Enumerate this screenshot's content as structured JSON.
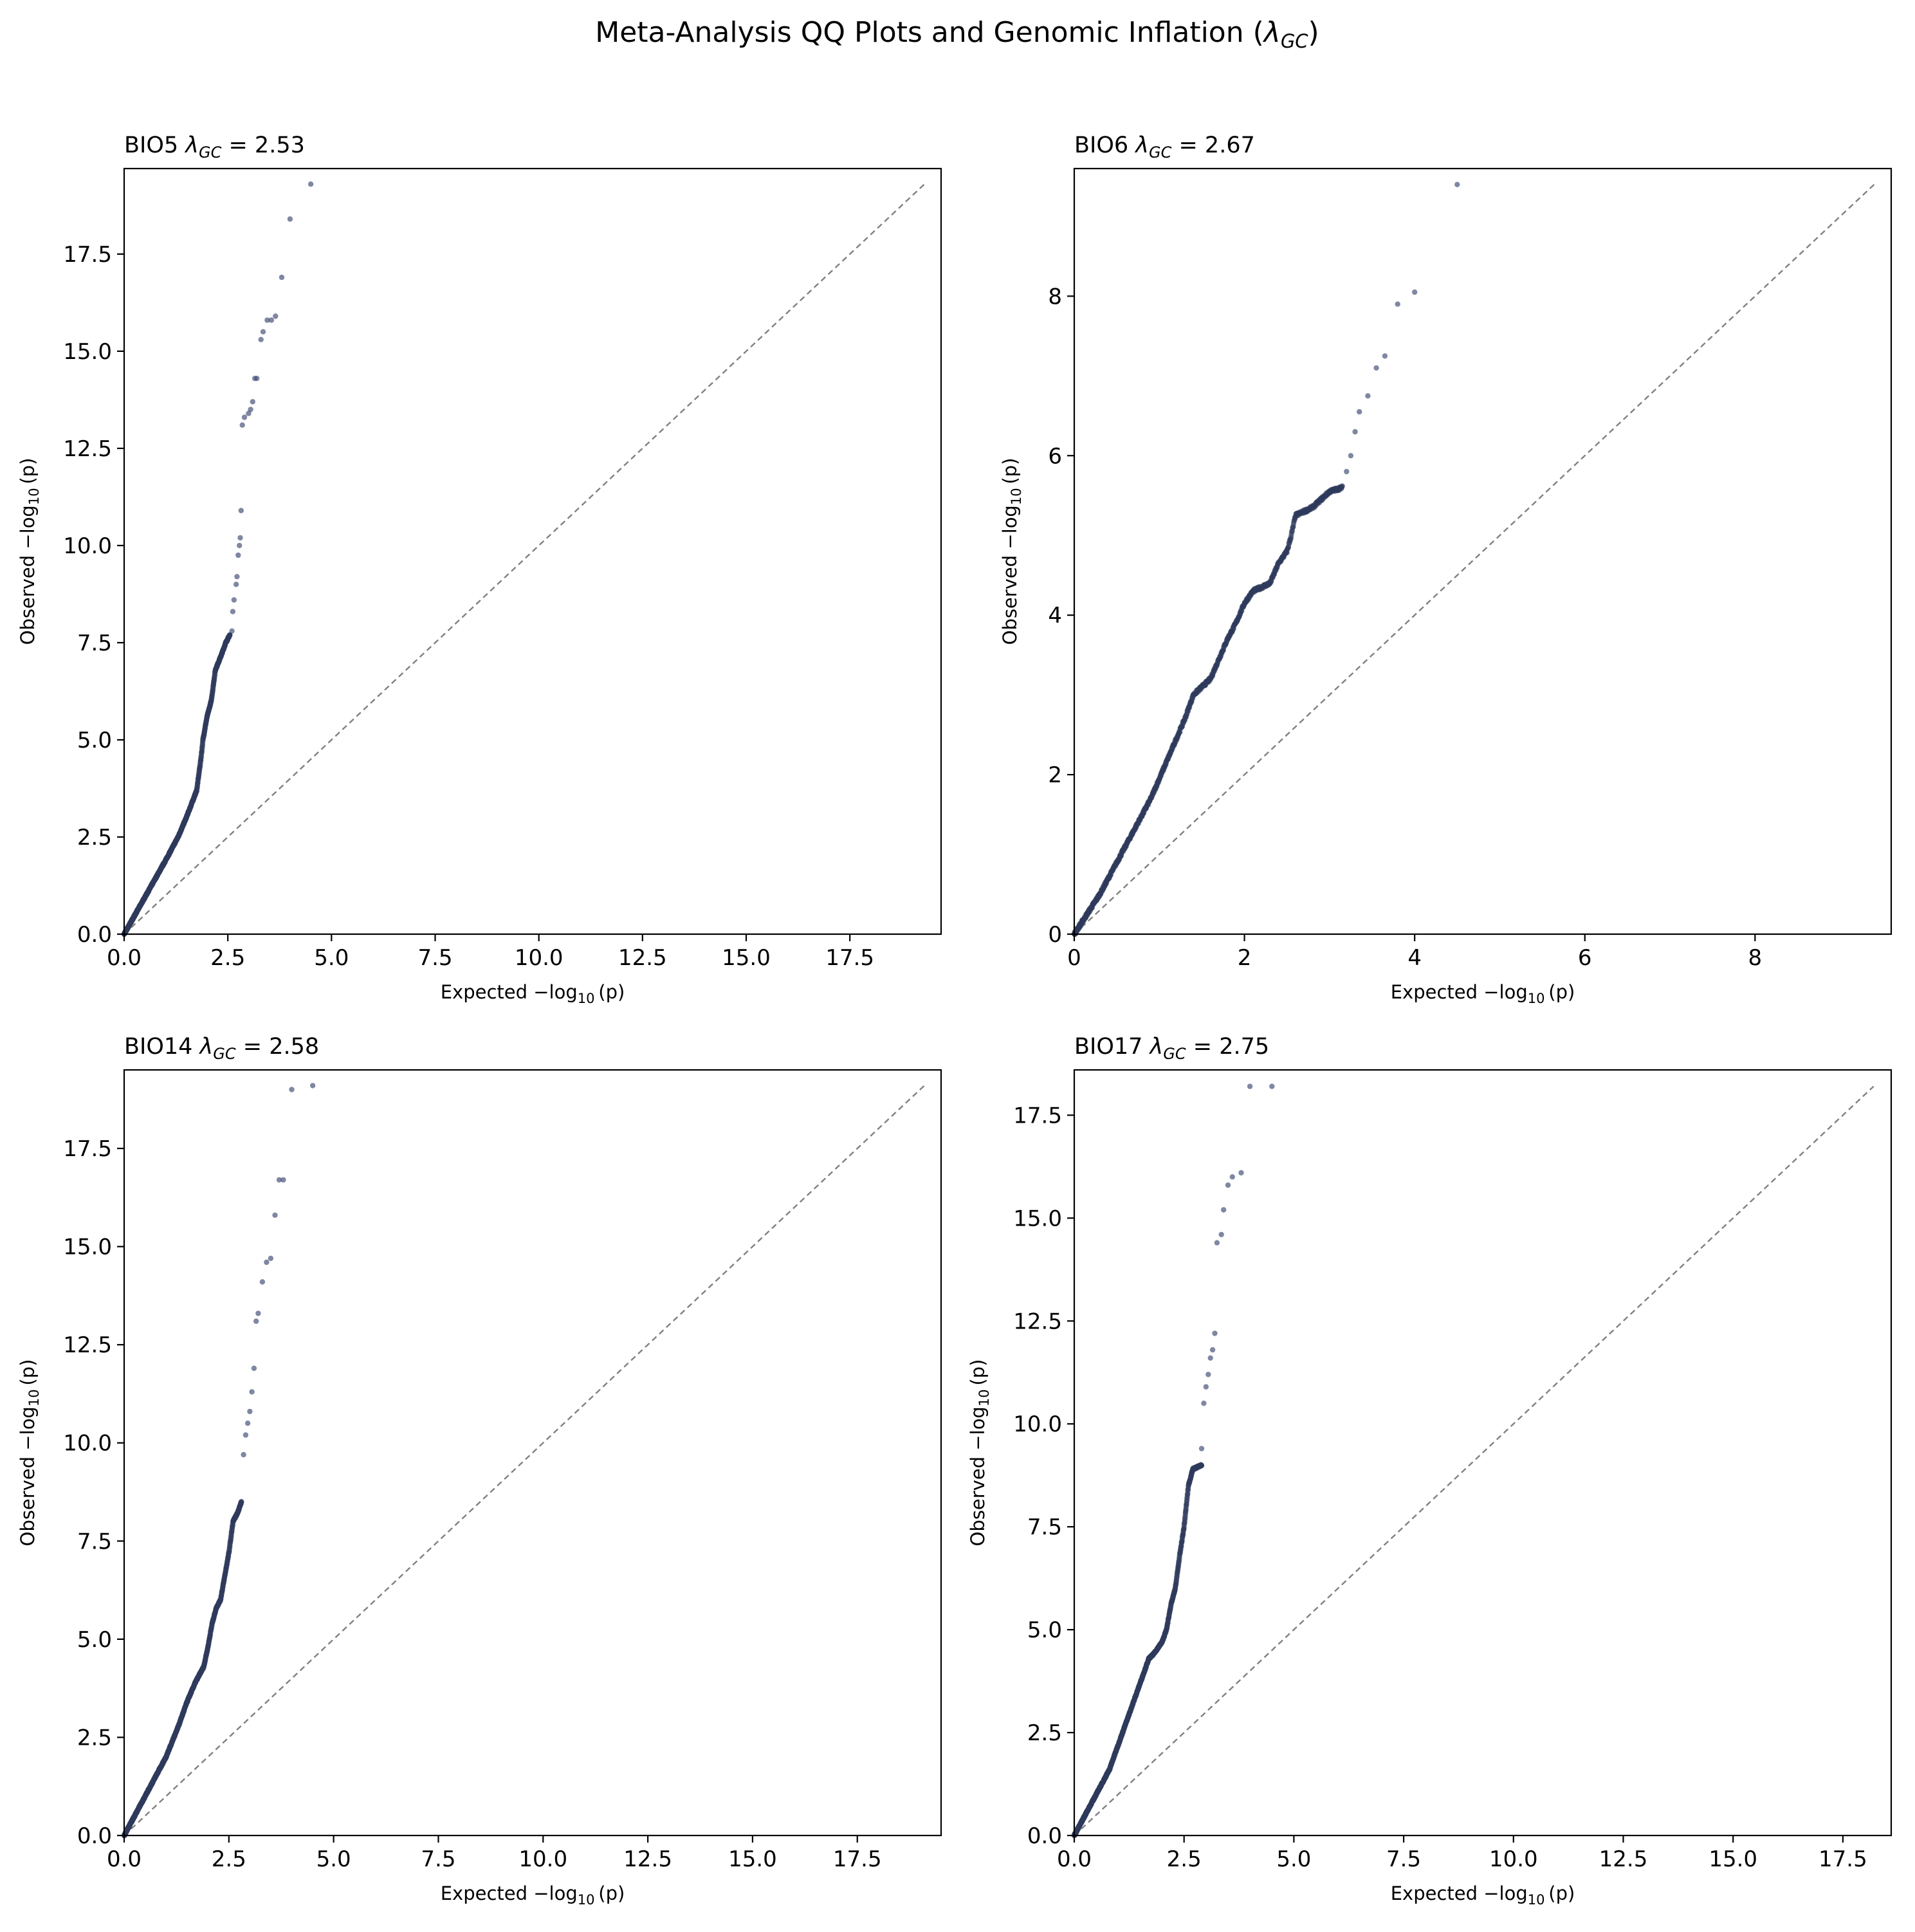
{
  "figure": {
    "suptitle_prefix": "Meta-Analysis QQ Plots and Genomic Inflation (",
    "suptitle_symbol": "λ",
    "suptitle_subscript": "GC",
    "suptitle_suffix": ")"
  },
  "chart_data": [
    {
      "type": "scatter",
      "trait": "BIO5",
      "lambda_symbol": "λ",
      "lambda_subscript": "GC",
      "lambda_text": " = 2.53",
      "lambda_gc": 2.53,
      "xlabel_prefix": "Expected −log",
      "xlabel_subscript": "10",
      "xlabel_suffix": "(p)",
      "ylabel_prefix": "Observed −log",
      "ylabel_subscript": "10",
      "ylabel_suffix": "(p)",
      "xlim": [
        0,
        19.7
      ],
      "ylim": [
        0,
        19.7
      ],
      "xticks": [
        0,
        2.5,
        5,
        7.5,
        10,
        12.5,
        15,
        17.5
      ],
      "xtick_labels": [
        "0.0",
        "2.5",
        "5.0",
        "7.5",
        "10.0",
        "12.5",
        "15.0",
        "17.5"
      ],
      "yticks": [
        0,
        2.5,
        5,
        7.5,
        10,
        12.5,
        15,
        17.5
      ],
      "ytick_labels": [
        "0.0",
        "2.5",
        "5.0",
        "7.5",
        "10.0",
        "12.5",
        "15.0",
        "17.5"
      ],
      "reference_line": [
        0,
        19.3
      ],
      "curve": [
        [
          0,
          0
        ],
        [
          0.5,
          0.95
        ],
        [
          1.0,
          1.9
        ],
        [
          1.3,
          2.5
        ],
        [
          1.5,
          3.0
        ],
        [
          1.75,
          3.7
        ],
        [
          1.85,
          4.5
        ],
        [
          1.9,
          5.0
        ],
        [
          2.0,
          5.6
        ],
        [
          2.1,
          6.0
        ],
        [
          2.2,
          6.8
        ],
        [
          2.35,
          7.2
        ],
        [
          2.45,
          7.5
        ],
        [
          2.55,
          7.7
        ]
      ],
      "tail": [
        [
          2.6,
          7.8
        ],
        [
          2.62,
          8.3
        ],
        [
          2.65,
          8.6
        ],
        [
          2.7,
          9.0
        ],
        [
          2.72,
          9.2
        ],
        [
          2.75,
          9.75
        ],
        [
          2.78,
          10.0
        ],
        [
          2.8,
          10.2
        ],
        [
          2.82,
          10.9
        ],
        [
          2.85,
          13.1
        ],
        [
          2.9,
          13.3
        ],
        [
          3.0,
          13.4
        ],
        [
          3.05,
          13.5
        ],
        [
          3.1,
          13.7
        ],
        [
          3.15,
          14.3
        ],
        [
          3.2,
          14.3
        ],
        [
          3.3,
          15.3
        ],
        [
          3.35,
          15.5
        ],
        [
          3.45,
          15.8
        ],
        [
          3.55,
          15.8
        ],
        [
          3.65,
          15.9
        ],
        [
          3.8,
          16.9
        ],
        [
          4.0,
          18.4
        ],
        [
          4.5,
          19.3
        ]
      ]
    },
    {
      "type": "scatter",
      "trait": "BIO6",
      "lambda_symbol": "λ",
      "lambda_subscript": "GC",
      "lambda_text": " = 2.67",
      "lambda_gc": 2.67,
      "xlabel_prefix": "Expected −log",
      "xlabel_subscript": "10",
      "xlabel_suffix": "(p)",
      "ylabel_prefix": "Observed −log",
      "ylabel_subscript": "10",
      "ylabel_suffix": "(p)",
      "xlim": [
        0,
        9.6
      ],
      "ylim": [
        0,
        9.6
      ],
      "xticks": [
        0,
        2,
        4,
        6,
        8
      ],
      "xtick_labels": [
        "0",
        "2",
        "4",
        "6",
        "8"
      ],
      "yticks": [
        0,
        2,
        4,
        6,
        8
      ],
      "ytick_labels": [
        "0",
        "2",
        "4",
        "6",
        "8"
      ],
      "reference_line": [
        0,
        9.4
      ],
      "curve": [
        [
          0,
          0
        ],
        [
          0.3,
          0.5
        ],
        [
          0.5,
          0.9
        ],
        [
          0.7,
          1.3
        ],
        [
          0.9,
          1.7
        ],
        [
          1.1,
          2.2
        ],
        [
          1.3,
          2.7
        ],
        [
          1.4,
          3.0
        ],
        [
          1.5,
          3.1
        ],
        [
          1.6,
          3.2
        ],
        [
          1.7,
          3.45
        ],
        [
          1.8,
          3.7
        ],
        [
          1.9,
          3.9
        ],
        [
          2.0,
          4.15
        ],
        [
          2.1,
          4.3
        ],
        [
          2.3,
          4.4
        ],
        [
          2.4,
          4.65
        ],
        [
          2.5,
          4.8
        ],
        [
          2.55,
          5.0
        ],
        [
          2.6,
          5.25
        ],
        [
          2.7,
          5.3
        ],
        [
          2.8,
          5.35
        ],
        [
          2.9,
          5.45
        ],
        [
          3.0,
          5.55
        ],
        [
          3.15,
          5.6
        ]
      ],
      "tail": [
        [
          3.2,
          5.8
        ],
        [
          3.25,
          6.0
        ],
        [
          3.3,
          6.3
        ],
        [
          3.35,
          6.55
        ],
        [
          3.45,
          6.75
        ],
        [
          3.55,
          7.1
        ],
        [
          3.65,
          7.25
        ],
        [
          3.8,
          7.9
        ],
        [
          4.0,
          8.05
        ],
        [
          4.5,
          9.4
        ]
      ]
    },
    {
      "type": "scatter",
      "trait": "BIO14",
      "lambda_symbol": "λ",
      "lambda_subscript": "GC",
      "lambda_text": " = 2.58",
      "lambda_gc": 2.58,
      "xlabel_prefix": "Expected −log",
      "xlabel_subscript": "10",
      "xlabel_suffix": "(p)",
      "ylabel_prefix": "Observed −log",
      "ylabel_subscript": "10",
      "ylabel_suffix": "(p)",
      "xlim": [
        0,
        19.5
      ],
      "ylim": [
        0,
        19.5
      ],
      "xticks": [
        0,
        2.5,
        5,
        7.5,
        10,
        12.5,
        15,
        17.5
      ],
      "xtick_labels": [
        "0.0",
        "2.5",
        "5.0",
        "7.5",
        "10.0",
        "12.5",
        "15.0",
        "17.5"
      ],
      "yticks": [
        0,
        2.5,
        5,
        7.5,
        10,
        12.5,
        15,
        17.5
      ],
      "ytick_labels": [
        "0.0",
        "2.5",
        "5.0",
        "7.5",
        "10.0",
        "12.5",
        "15.0",
        "17.5"
      ],
      "reference_line": [
        0,
        19.1
      ],
      "curve": [
        [
          0,
          0
        ],
        [
          0.5,
          1.0
        ],
        [
          1.0,
          2.0
        ],
        [
          1.3,
          2.8
        ],
        [
          1.5,
          3.4
        ],
        [
          1.7,
          3.9
        ],
        [
          1.9,
          4.3
        ],
        [
          2.0,
          4.8
        ],
        [
          2.1,
          5.4
        ],
        [
          2.2,
          5.8
        ],
        [
          2.3,
          6.0
        ],
        [
          2.4,
          6.6
        ],
        [
          2.5,
          7.2
        ],
        [
          2.6,
          8.0
        ],
        [
          2.7,
          8.2
        ],
        [
          2.8,
          8.5
        ]
      ],
      "tail": [
        [
          2.85,
          9.7
        ],
        [
          2.9,
          10.2
        ],
        [
          2.95,
          10.5
        ],
        [
          3.0,
          10.8
        ],
        [
          3.05,
          11.3
        ],
        [
          3.1,
          11.9
        ],
        [
          3.15,
          13.1
        ],
        [
          3.2,
          13.3
        ],
        [
          3.3,
          14.1
        ],
        [
          3.4,
          14.6
        ],
        [
          3.5,
          14.7
        ],
        [
          3.6,
          15.8
        ],
        [
          3.7,
          16.7
        ],
        [
          3.8,
          16.7
        ],
        [
          4.0,
          19.0
        ],
        [
          4.5,
          19.1
        ]
      ]
    },
    {
      "type": "scatter",
      "trait": "BIO17",
      "lambda_symbol": "λ",
      "lambda_subscript": "GC",
      "lambda_text": " = 2.75",
      "lambda_gc": 2.75,
      "xlabel_prefix": "Expected −log",
      "xlabel_subscript": "10",
      "xlabel_suffix": "(p)",
      "ylabel_prefix": "Observed −log",
      "ylabel_subscript": "10",
      "ylabel_suffix": "(p)",
      "xlim": [
        0,
        18.6
      ],
      "ylim": [
        0,
        18.6
      ],
      "xticks": [
        0,
        2.5,
        5,
        7.5,
        10,
        12.5,
        15,
        17.5
      ],
      "xtick_labels": [
        "0.0",
        "2.5",
        "5.0",
        "7.5",
        "10.0",
        "12.5",
        "15.0",
        "17.5"
      ],
      "yticks": [
        0,
        2.5,
        5,
        7.5,
        10,
        12.5,
        15,
        17.5
      ],
      "ytick_labels": [
        "0.0",
        "2.5",
        "5.0",
        "7.5",
        "10.0",
        "12.5",
        "15.0",
        "17.5"
      ],
      "reference_line": [
        0,
        18.2
      ],
      "curve": [
        [
          0,
          0
        ],
        [
          0.5,
          1.0
        ],
        [
          0.8,
          1.6
        ],
        [
          1.0,
          2.2
        ],
        [
          1.2,
          2.8
        ],
        [
          1.4,
          3.4
        ],
        [
          1.6,
          4.0
        ],
        [
          1.7,
          4.3
        ],
        [
          1.8,
          4.4
        ],
        [
          2.0,
          4.7
        ],
        [
          2.1,
          5.0
        ],
        [
          2.2,
          5.6
        ],
        [
          2.3,
          6.0
        ],
        [
          2.4,
          6.8
        ],
        [
          2.5,
          7.5
        ],
        [
          2.6,
          8.5
        ],
        [
          2.7,
          8.9
        ],
        [
          2.9,
          9.0
        ]
      ],
      "tail": [
        [
          2.9,
          9.4
        ],
        [
          2.95,
          10.5
        ],
        [
          3.0,
          10.9
        ],
        [
          3.05,
          11.2
        ],
        [
          3.1,
          11.6
        ],
        [
          3.15,
          11.8
        ],
        [
          3.2,
          12.2
        ],
        [
          3.25,
          14.4
        ],
        [
          3.35,
          14.6
        ],
        [
          3.4,
          15.2
        ],
        [
          3.5,
          15.8
        ],
        [
          3.6,
          16.0
        ],
        [
          3.8,
          16.1
        ],
        [
          4.0,
          18.2
        ],
        [
          4.5,
          18.2
        ]
      ]
    }
  ]
}
